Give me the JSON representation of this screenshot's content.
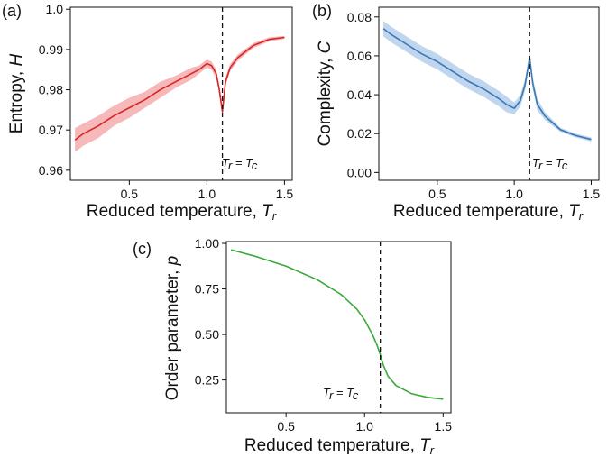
{
  "chart_data": [
    {
      "panel": "(a)",
      "type": "line",
      "xlabel": "Reduced temperature, ",
      "xlabel_var": "T",
      "xlabel_sub": "r",
      "ylabel": "Entropy, ",
      "ylabel_var": "H",
      "xlim": [
        0.12,
        1.55
      ],
      "ylim": [
        0.9575,
        1.0005
      ],
      "xticks": [
        0.5,
        1.0,
        1.5
      ],
      "xtick_labels": [
        "0.5",
        "1.0",
        "1.5"
      ],
      "yticks": [
        0.96,
        0.97,
        0.98,
        0.99,
        1.0
      ],
      "ytick_labels": [
        "0.96",
        "0.97",
        "0.98",
        "0.99",
        "1.0"
      ],
      "critical_x": 1.1,
      "annotation": {
        "left": "T",
        "left_sub": "r",
        "mid": " = ",
        "right": "T",
        "right_sub": "c"
      },
      "colors": {
        "line": "#d62728",
        "band": "#f4a0a3"
      },
      "series": [
        {
          "x": [
            0.15,
            0.2,
            0.3,
            0.4,
            0.5,
            0.6,
            0.7,
            0.8,
            0.9,
            0.95,
            1.0,
            1.03,
            1.06,
            1.08,
            1.1,
            1.12,
            1.15,
            1.2,
            1.3,
            1.4,
            1.5
          ],
          "y": [
            0.9675,
            0.969,
            0.971,
            0.9735,
            0.9755,
            0.9775,
            0.98,
            0.982,
            0.984,
            0.985,
            0.9865,
            0.986,
            0.984,
            0.98,
            0.9745,
            0.982,
            0.9855,
            0.988,
            0.991,
            0.9925,
            0.993
          ],
          "lower": [
            0.9645,
            0.966,
            0.968,
            0.971,
            0.973,
            0.9755,
            0.978,
            0.9805,
            0.9825,
            0.984,
            0.9855,
            0.985,
            0.9828,
            0.979,
            0.9738,
            0.981,
            0.9846,
            0.9872,
            0.9904,
            0.992,
            0.9926
          ],
          "upper": [
            0.9705,
            0.9715,
            0.9735,
            0.976,
            0.978,
            0.9795,
            0.982,
            0.9835,
            0.9855,
            0.986,
            0.9875,
            0.987,
            0.985,
            0.981,
            0.9752,
            0.983,
            0.9864,
            0.9888,
            0.9916,
            0.993,
            0.9934
          ]
        }
      ]
    },
    {
      "panel": "(b)",
      "type": "line",
      "xlabel": "Reduced temperature, ",
      "xlabel_var": "T",
      "xlabel_sub": "r",
      "ylabel": "Complexity, ",
      "ylabel_var": "C",
      "xlim": [
        0.12,
        1.55
      ],
      "ylim": [
        -0.004,
        0.085
      ],
      "xticks": [
        0.5,
        1.0,
        1.5
      ],
      "xtick_labels": [
        "0.5",
        "1.0",
        "1.5"
      ],
      "yticks": [
        0.0,
        0.02,
        0.04,
        0.06,
        0.08
      ],
      "ytick_labels": [
        "0.00",
        "0.02",
        "0.04",
        "0.06",
        "0.08"
      ],
      "critical_x": 1.1,
      "annotation": {
        "left": "T",
        "left_sub": "r",
        "mid": " = ",
        "right": "T",
        "right_sub": "c"
      },
      "colors": {
        "line": "#3a78b5",
        "band": "#a9c8e8"
      },
      "series": [
        {
          "x": [
            0.15,
            0.2,
            0.3,
            0.4,
            0.5,
            0.6,
            0.7,
            0.8,
            0.9,
            0.95,
            1.0,
            1.04,
            1.07,
            1.1,
            1.12,
            1.15,
            1.2,
            1.3,
            1.4,
            1.5
          ],
          "y": [
            0.074,
            0.071,
            0.066,
            0.061,
            0.057,
            0.052,
            0.047,
            0.043,
            0.038,
            0.035,
            0.033,
            0.037,
            0.045,
            0.059,
            0.046,
            0.035,
            0.029,
            0.022,
            0.019,
            0.017
          ],
          "lower": [
            0.07,
            0.067,
            0.062,
            0.057,
            0.053,
            0.048,
            0.043,
            0.039,
            0.034,
            0.031,
            0.03,
            0.034,
            0.042,
            0.056,
            0.043,
            0.032,
            0.027,
            0.021,
            0.018,
            0.016
          ],
          "upper": [
            0.078,
            0.075,
            0.07,
            0.065,
            0.061,
            0.056,
            0.051,
            0.047,
            0.042,
            0.039,
            0.036,
            0.04,
            0.048,
            0.062,
            0.049,
            0.038,
            0.031,
            0.023,
            0.02,
            0.018
          ]
        }
      ]
    },
    {
      "panel": "(c)",
      "type": "line",
      "xlabel": "Reduced temperature, ",
      "xlabel_var": "T",
      "xlabel_sub": "r",
      "ylabel": "Order parameter, ",
      "ylabel_var": "p",
      "xlim": [
        0.12,
        1.55
      ],
      "ylim": [
        0.07,
        1.01
      ],
      "xticks": [
        0.5,
        1.0,
        1.5
      ],
      "xtick_labels": [
        "0.5",
        "1.0",
        "1.5"
      ],
      "yticks": [
        0.25,
        0.5,
        0.75,
        1.0
      ],
      "ytick_labels": [
        "0.25",
        "0.50",
        "0.75",
        "1.00"
      ],
      "critical_x": 1.1,
      "annotation": {
        "left": "T",
        "left_sub": "r",
        "mid": " = ",
        "right": "T",
        "right_sub": "c"
      },
      "colors": {
        "line": "#3aa83a"
      },
      "series": [
        {
          "x": [
            0.15,
            0.3,
            0.5,
            0.7,
            0.85,
            0.95,
            1.0,
            1.05,
            1.08,
            1.1,
            1.12,
            1.15,
            1.2,
            1.3,
            1.4,
            1.5
          ],
          "y": [
            0.965,
            0.93,
            0.875,
            0.8,
            0.72,
            0.64,
            0.58,
            0.5,
            0.44,
            0.39,
            0.33,
            0.27,
            0.22,
            0.175,
            0.155,
            0.145
          ]
        }
      ]
    }
  ]
}
